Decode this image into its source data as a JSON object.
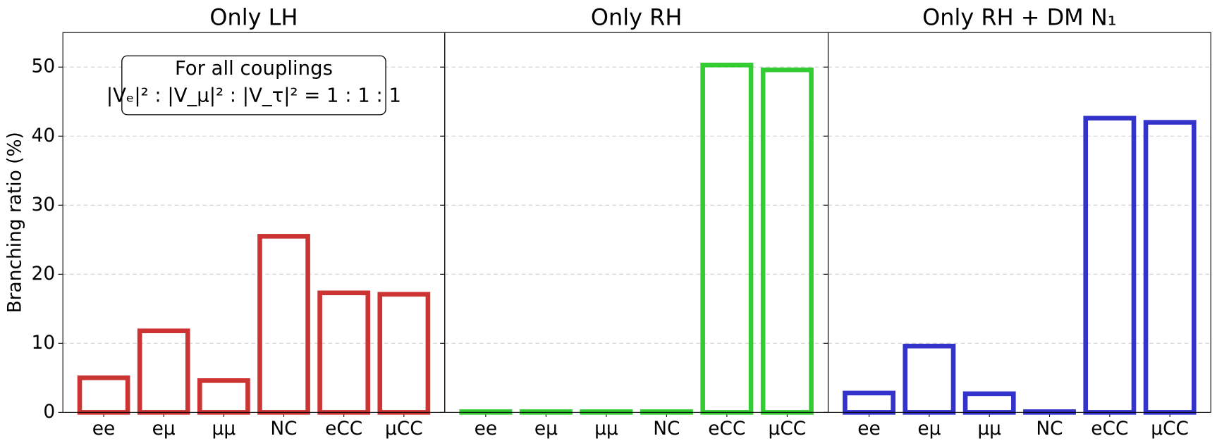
{
  "chart_data": [
    {
      "type": "bar",
      "title": "Only LH",
      "ylabel": "Branching ratio (%)",
      "annotation": [
        "For all couplings",
        "|Vₑ|² : |V_μ|² : |V_τ|² = 1 : 1 : 1"
      ],
      "categories": [
        "ee",
        "eμ",
        "μμ",
        "NC",
        "eCC",
        "μCC"
      ],
      "values": [
        5.0,
        11.8,
        4.6,
        25.5,
        17.3,
        17.1
      ],
      "color": "#cc3333",
      "ylim": [
        0,
        55
      ],
      "yticks": [
        0,
        10,
        20,
        30,
        40,
        50
      ],
      "grid": true
    },
    {
      "type": "bar",
      "title": "Only RH",
      "categories": [
        "ee",
        "eμ",
        "μμ",
        "NC",
        "eCC",
        "μCC"
      ],
      "values": [
        0.1,
        0.1,
        0.1,
        0.1,
        50.3,
        49.6
      ],
      "color": "#33cc33",
      "ylim": [
        0,
        55
      ],
      "yticks": [
        0,
        10,
        20,
        30,
        40,
        50
      ],
      "grid": true
    },
    {
      "type": "bar",
      "title": "Only RH + DM N₁",
      "categories": [
        "ee",
        "eμ",
        "μμ",
        "NC",
        "eCC",
        "μCC"
      ],
      "values": [
        2.8,
        9.6,
        2.7,
        0.1,
        42.6,
        42.0
      ],
      "color": "#3333cc",
      "ylim": [
        0,
        55
      ],
      "yticks": [
        0,
        10,
        20,
        30,
        40,
        50
      ],
      "grid": true
    }
  ]
}
